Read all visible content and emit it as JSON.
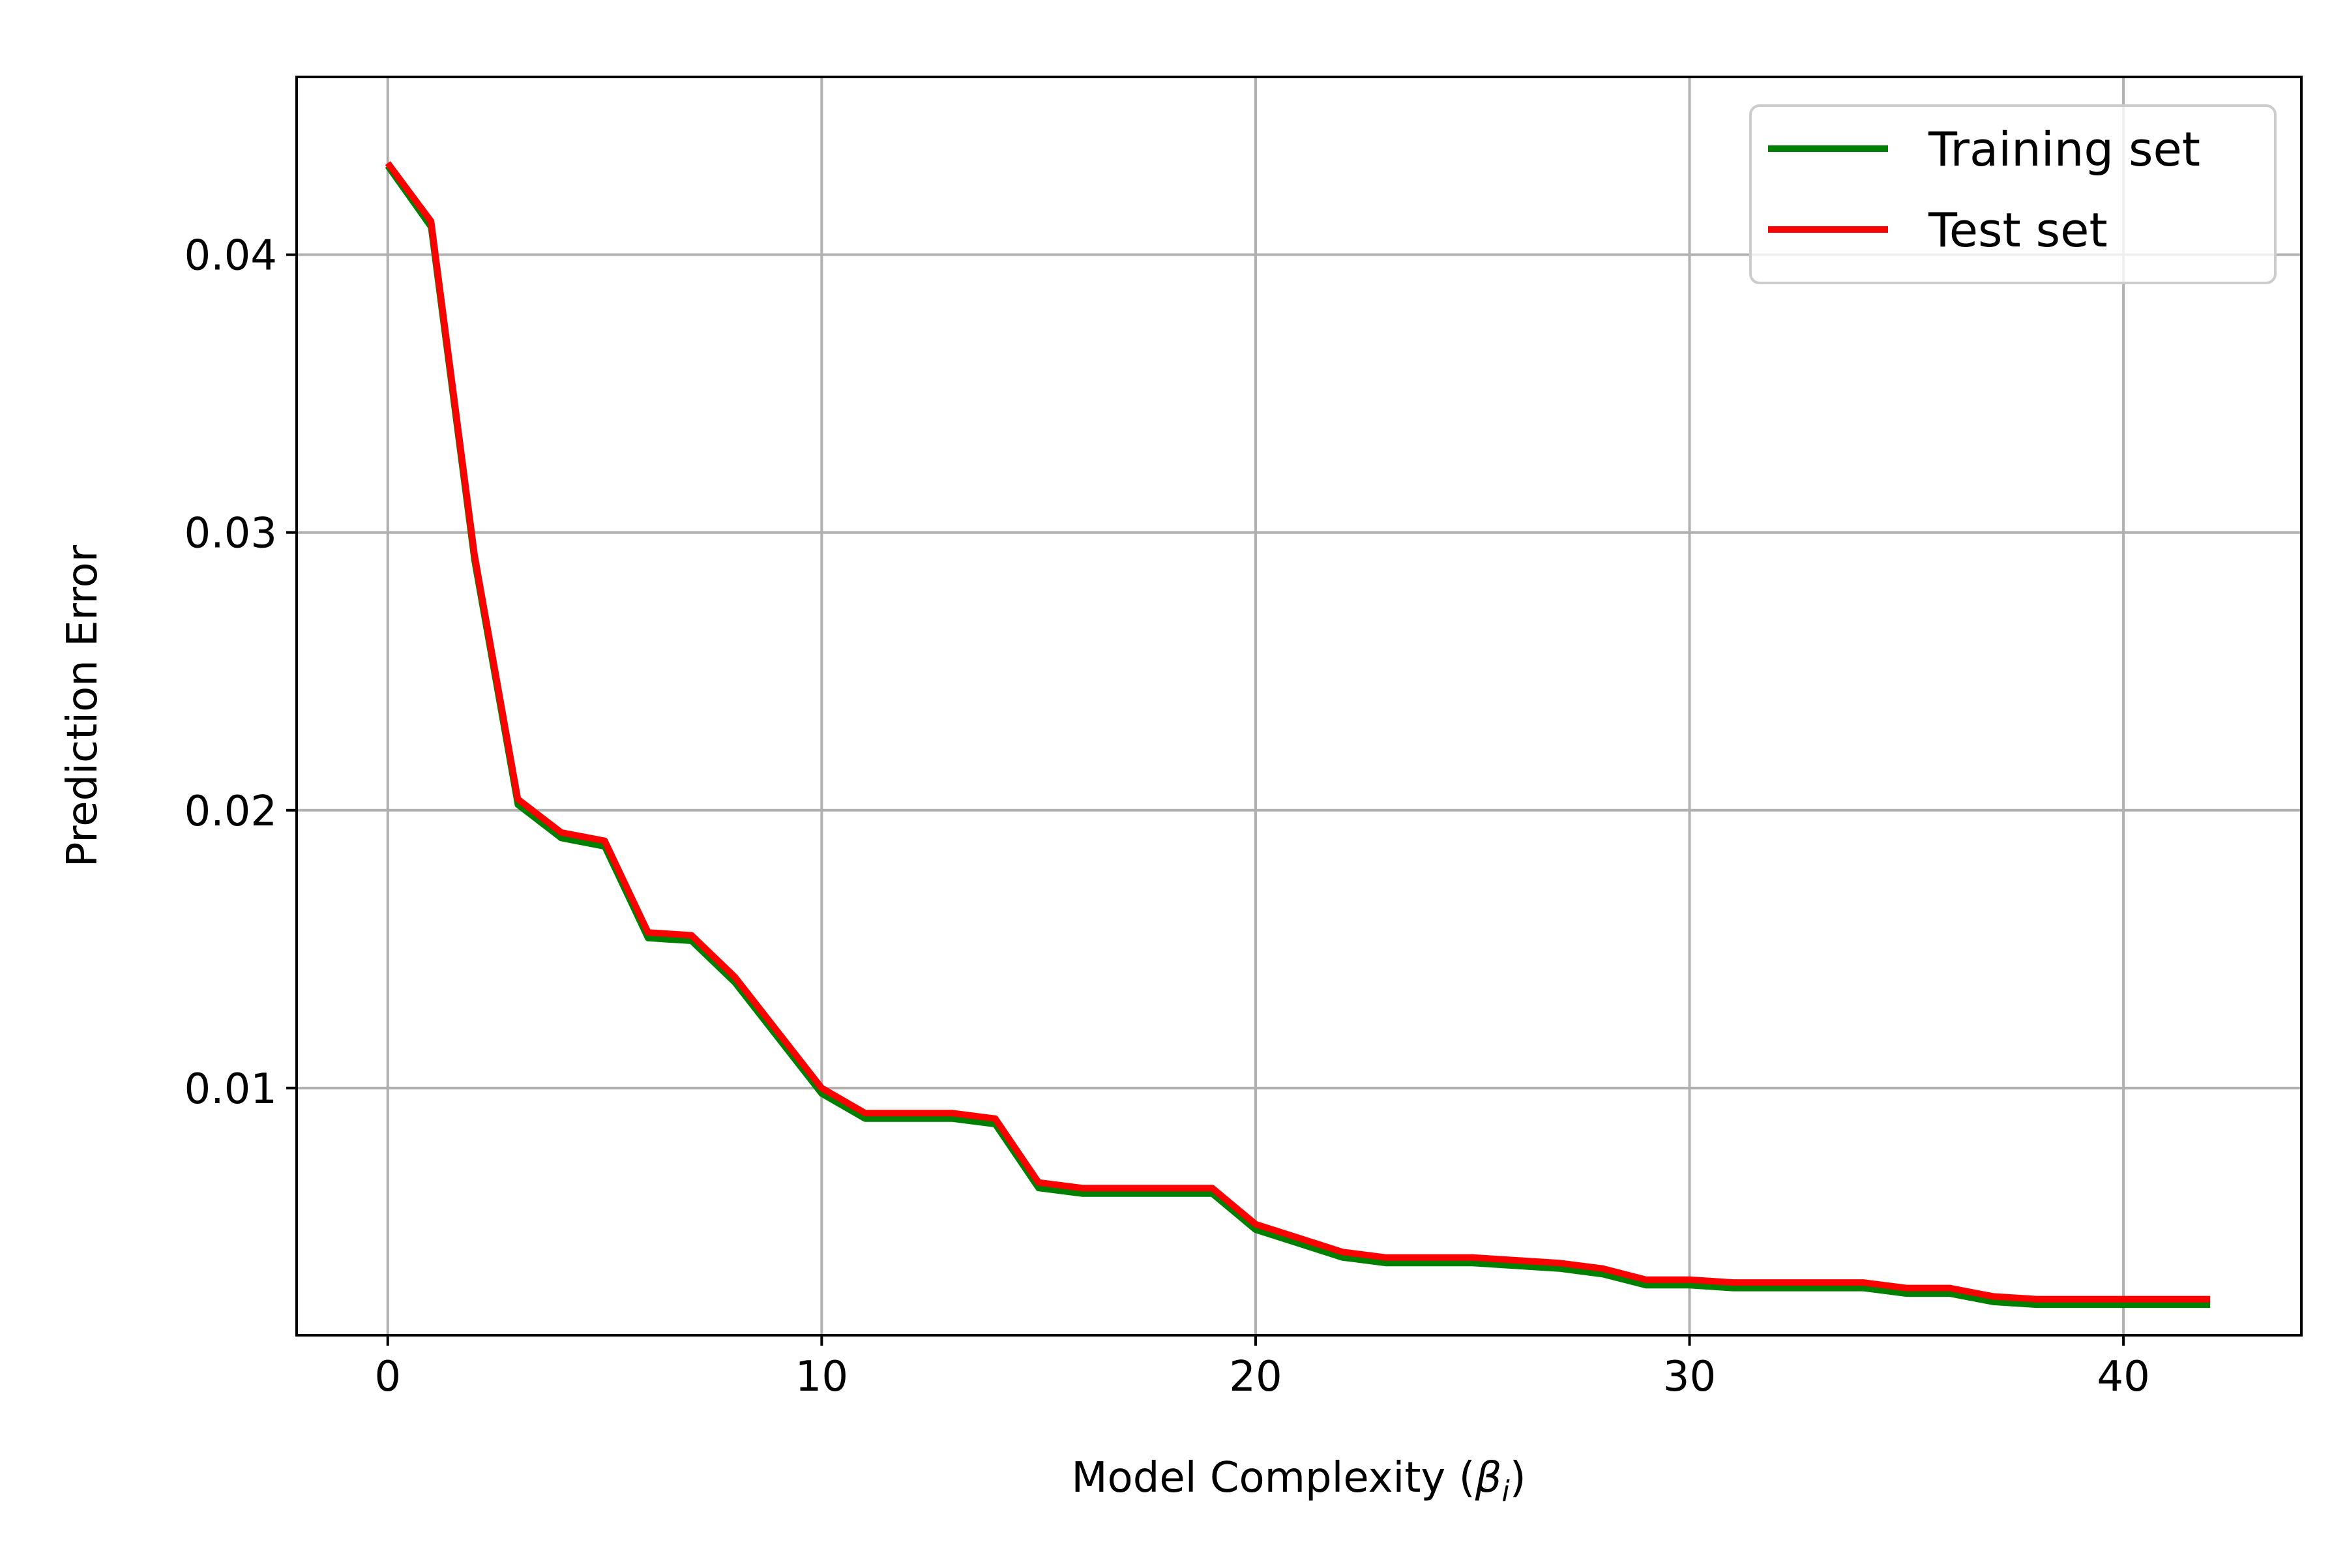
{
  "chart_data": {
    "type": "line",
    "title": "",
    "xlabel": "Model Complexity (",
    "xlabel_symbol": "β",
    "xlabel_subscript": "i",
    "xlabel_suffix": ")",
    "ylabel": "Prediction Error",
    "xlim": [
      -2.1,
      44.1
    ],
    "ylim": [
      0.0011,
      0.0464
    ],
    "xticks": [
      0,
      10,
      20,
      30,
      40
    ],
    "xtick_labels": [
      "0",
      "10",
      "20",
      "30",
      "40"
    ],
    "yticks": [
      0.01,
      0.02,
      0.03,
      0.04
    ],
    "ytick_labels": [
      "0.01",
      "0.02",
      "0.03",
      "0.04"
    ],
    "grid": true,
    "legend_position": "upper right",
    "x": [
      0,
      1,
      2,
      3,
      4,
      5,
      6,
      7,
      8,
      9,
      10,
      11,
      12,
      13,
      14,
      15,
      16,
      17,
      18,
      19,
      20,
      21,
      22,
      23,
      24,
      25,
      26,
      27,
      28,
      29,
      30,
      31,
      32,
      33,
      34,
      35,
      36,
      37,
      38,
      39,
      40,
      41,
      42
    ],
    "series": [
      {
        "name": "Training set",
        "color": "#008000",
        "values": [
          0.0432,
          0.041,
          0.029,
          0.0202,
          0.019,
          0.0187,
          0.0154,
          0.0153,
          0.0138,
          0.0118,
          0.0098,
          0.0089,
          0.0089,
          0.0089,
          0.0087,
          0.0064,
          0.0062,
          0.0062,
          0.0062,
          0.0062,
          0.0049,
          0.0044,
          0.0039,
          0.0037,
          0.0037,
          0.0037,
          0.0036,
          0.0035,
          0.0033,
          0.0029,
          0.0029,
          0.0028,
          0.0028,
          0.0028,
          0.0028,
          0.0026,
          0.0026,
          0.0023,
          0.0022,
          0.0022,
          0.0022,
          0.0022,
          0.0022
        ]
      },
      {
        "name": "Test set",
        "color": "#ff0000",
        "values": [
          0.0433,
          0.0412,
          0.0292,
          0.0204,
          0.0192,
          0.0189,
          0.0156,
          0.0155,
          0.014,
          0.012,
          0.01,
          0.0091,
          0.0091,
          0.0091,
          0.0089,
          0.0066,
          0.0064,
          0.0064,
          0.0064,
          0.0064,
          0.0051,
          0.0046,
          0.0041,
          0.0039,
          0.0039,
          0.0039,
          0.0038,
          0.0037,
          0.0035,
          0.0031,
          0.0031,
          0.003,
          0.003,
          0.003,
          0.003,
          0.0028,
          0.0028,
          0.0025,
          0.0024,
          0.0024,
          0.0024,
          0.0024,
          0.0024
        ]
      }
    ]
  }
}
